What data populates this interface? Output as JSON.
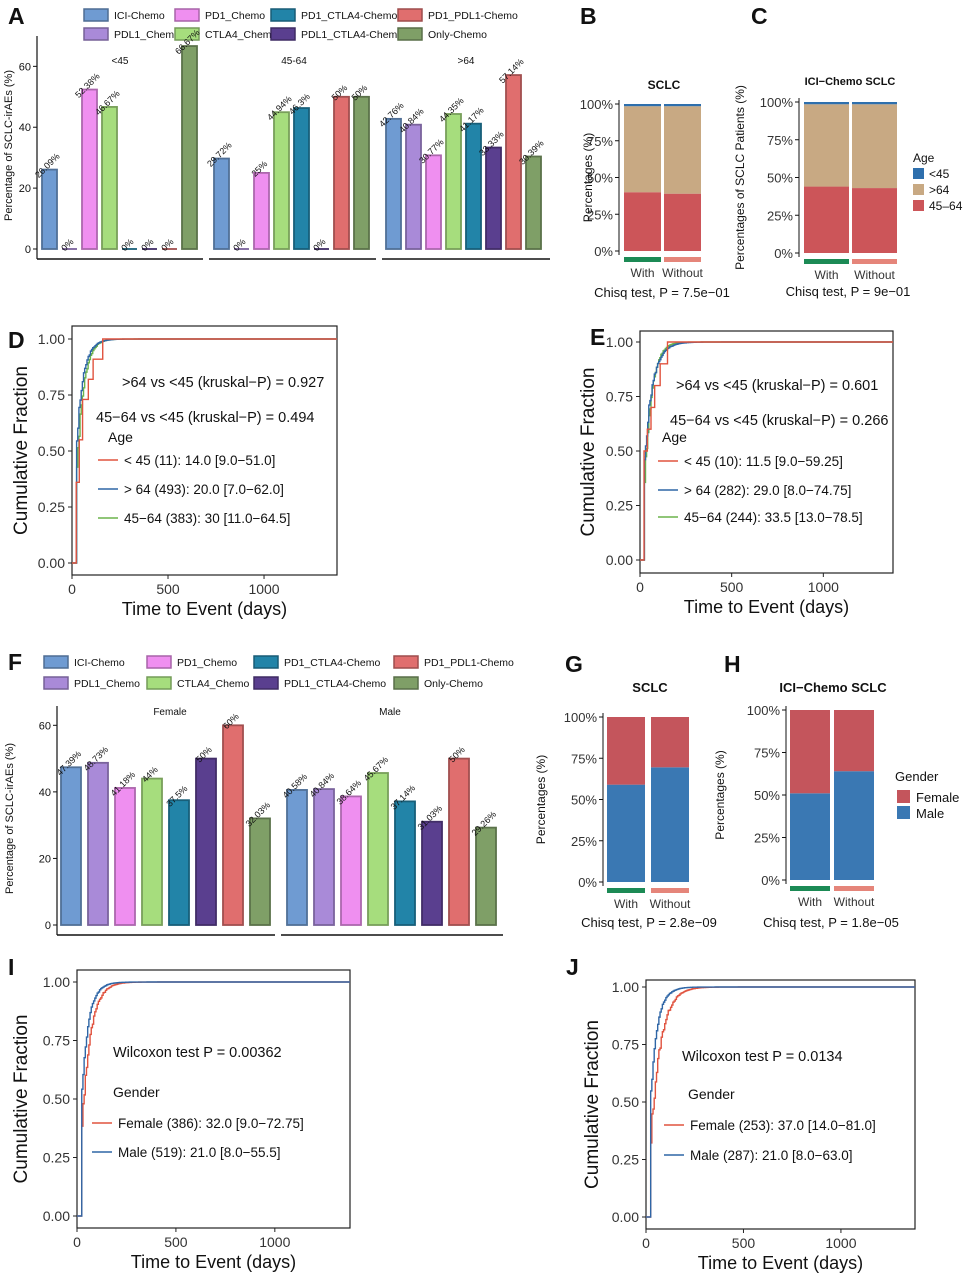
{
  "colors": {
    "ICI-Chemo": "#6f9bd2",
    "PD1_Chemo": "#ef8ff0",
    "PD1_CTLA4-Chemo": "#2284a8",
    "PD1_PDL1-Chemo": "#e06e6e",
    "PDL1_Chemo": "#a98ad8",
    "CTLA4_Chemo": "#a6dd7d",
    "PDL1_CTLA4-Chemo": "#5a3f8f",
    "Only-Chemo": "#7f9f67",
    "age_lt45": "#2e6fad",
    "age_gt64": "#c8a983",
    "age_45_64": "#cc5559",
    "female": "#c4555c",
    "male": "#3a78b3",
    "with_bar": "#1c8a55",
    "without_bar": "#e5857a",
    "km_red": "#e0533f",
    "km_blue": "#2f66a6",
    "km_green": "#6cb34b"
  },
  "chart_data": [
    {
      "panel": "A",
      "type": "bar",
      "ylabel": "Percentage of SCLC-irAEs (%)",
      "ylim": [
        0,
        68
      ],
      "yticks": [
        "0",
        "20",
        "40",
        "60"
      ],
      "legend": [
        "ICI-Chemo",
        "PD1_Chemo",
        "PD1_CTLA4-Chemo",
        "PD1_PDL1-Chemo",
        "PDL1_Chemo",
        "CTLA4_Chemo",
        "PDL1_CTLA4-Chemo",
        "Only-Chemo"
      ],
      "groups": [
        {
          "name": "<45",
          "bars": [
            {
              "s": "ICI-Chemo",
              "v": 26.09,
              "label": "26.09%"
            },
            {
              "s": "PDL1_Chemo",
              "v": 0,
              "label": "0%"
            },
            {
              "s": "PD1_Chemo",
              "v": 52.38,
              "label": "52.38%"
            },
            {
              "s": "CTLA4_Chemo",
              "v": 46.67,
              "label": "46.67%"
            },
            {
              "s": "PD1_CTLA4-Chemo",
              "v": 0,
              "label": "0%"
            },
            {
              "s": "PDL1_CTLA4-Chemo",
              "v": 0,
              "label": "0%"
            },
            {
              "s": "PD1_PDL1-Chemo",
              "v": 0,
              "label": "0%"
            },
            {
              "s": "Only-Chemo",
              "v": 66.67,
              "label": "66.67%"
            }
          ]
        },
        {
          "name": "45-64",
          "bars": [
            {
              "s": "ICI-Chemo",
              "v": 29.72,
              "label": "29.72%"
            },
            {
              "s": "PDL1_Chemo",
              "v": 0,
              "label": "0%"
            },
            {
              "s": "PD1_Chemo",
              "v": 25,
              "label": "25%"
            },
            {
              "s": "CTLA4_Chemo",
              "v": 44.94,
              "label": "44.94%"
            },
            {
              "s": "PD1_CTLA4-Chemo",
              "v": 46.3,
              "label": "46.3%"
            },
            {
              "s": "PDL1_CTLA4-Chemo",
              "v": 0,
              "label": "0%"
            },
            {
              "s": "PD1_PDL1-Chemo",
              "v": 50,
              "label": "50%"
            },
            {
              "s": "Only-Chemo",
              "v": 50,
              "label": "50%"
            }
          ]
        },
        {
          "name": ">64",
          "bars": [
            {
              "s": "ICI-Chemo",
              "v": 42.76,
              "label": "42.76%"
            },
            {
              "s": "PDL1_Chemo",
              "v": 40.84,
              "label": "40.84%"
            },
            {
              "s": "PD1_Chemo",
              "v": 30.77,
              "label": "30.77%"
            },
            {
              "s": "CTLA4_Chemo",
              "v": 44.35,
              "label": "44.35%"
            },
            {
              "s": "PD1_CTLA4-Chemo",
              "v": 41.17,
              "label": "41.17%"
            },
            {
              "s": "PDL1_CTLA4-Chemo",
              "v": 33.33,
              "label": "33.33%"
            },
            {
              "s": "PD1_PDL1-Chemo",
              "v": 57.14,
              "label": "57.14%"
            },
            {
              "s": "Only-Chemo",
              "v": 30.39,
              "label": "30.39%"
            }
          ]
        }
      ]
    },
    {
      "panel": "B",
      "type": "bar",
      "stacked": true,
      "title": "SCLC",
      "ylabel": "Percentages (%)",
      "yticks": [
        "0%",
        "25%",
        "50%",
        "75%",
        "100%"
      ],
      "categories": [
        "With",
        "Without"
      ],
      "legend_title": "Age",
      "legend": [
        "<45",
        ">64",
        "45–64"
      ],
      "series": [
        {
          "name": "45–64",
          "values": [
            40,
            39
          ]
        },
        {
          "name": ">64",
          "values": [
            58.5,
            59.5
          ]
        },
        {
          "name": "<45",
          "values": [
            1.5,
            1.5
          ]
        }
      ],
      "test": "Chisq test, P = 7.5e−01"
    },
    {
      "panel": "C",
      "type": "bar",
      "stacked": true,
      "title": "ICI−Chemo SCLC",
      "ylabel": "Percentages of SCLC Patients (%)",
      "yticks": [
        "0%",
        "25%",
        "50%",
        "75%",
        "100%"
      ],
      "categories": [
        "With",
        "Without"
      ],
      "series": [
        {
          "name": "45–64",
          "values": [
            44,
            43
          ]
        },
        {
          "name": ">64",
          "values": [
            54.5,
            55.5
          ]
        },
        {
          "name": "<45",
          "values": [
            1.5,
            1.5
          ]
        }
      ],
      "test": "Chisq test, P = 9e−01"
    },
    {
      "panel": "D",
      "type": "line",
      "xlabel": "Time to Event (days)",
      "ylabel": "Cumulative Fraction",
      "xticks": [
        "0",
        "500",
        "1000"
      ],
      "yticks": [
        "0.00",
        "0.25",
        "0.50",
        "0.75",
        "1.00"
      ],
      "annotations": [
        ">64 vs <45 (kruskal−P) = 0.927",
        "45−64 vs <45 (kruskal−P) = 0.494"
      ],
      "legend_title": "Age",
      "legend": [
        "< 45 (11): 14.0 [9.0−51.0]",
        "> 64 (493): 20.0 [7.0−62.0]",
        "45−64 (383): 30 [11.0−64.5]"
      ]
    },
    {
      "panel": "E",
      "type": "line",
      "xlabel": "Time to Event (days)",
      "ylabel": "Cumulative Fraction",
      "xticks": [
        "0",
        "500",
        "1000"
      ],
      "yticks": [
        "0.00",
        "0.25",
        "0.50",
        "0.75",
        "1.00"
      ],
      "annotations": [
        ">64 vs <45 (kruskal−P) = 0.601",
        "45−64 vs <45 (kruskal−P) = 0.266"
      ],
      "legend_title": "Age",
      "legend": [
        "< 45 (10): 11.5 [9.0−59.25]",
        "> 64 (282): 29.0 [8.0−74.75]",
        "45−64 (244): 33.5 [13.0−78.5]"
      ]
    },
    {
      "panel": "F",
      "type": "bar",
      "ylabel": "Percentage of SCLC-irAEs (%)",
      "ylim": [
        0,
        64
      ],
      "yticks": [
        "0",
        "20",
        "40",
        "60"
      ],
      "groups": [
        {
          "name": "Female",
          "bars": [
            {
              "s": "ICI-Chemo",
              "v": 47.39,
              "label": "47.39%"
            },
            {
              "s": "PDL1_Chemo",
              "v": 48.73,
              "label": "48.73%"
            },
            {
              "s": "PD1_Chemo",
              "v": 41.18,
              "label": "41.18%"
            },
            {
              "s": "CTLA4_Chemo",
              "v": 44,
              "label": "44%"
            },
            {
              "s": "PD1_CTLA4-Chemo",
              "v": 37.5,
              "label": "37.5%"
            },
            {
              "s": "PDL1_CTLA4-Chemo",
              "v": 50,
              "label": "50%"
            },
            {
              "s": "PD1_PDL1-Chemo",
              "v": 60,
              "label": "60%"
            },
            {
              "s": "Only-Chemo",
              "v": 32.03,
              "label": "32.03%"
            }
          ]
        },
        {
          "name": "Male",
          "bars": [
            {
              "s": "ICI-Chemo",
              "v": 40.58,
              "label": "40.58%"
            },
            {
              "s": "PDL1_Chemo",
              "v": 40.84,
              "label": "40.84%"
            },
            {
              "s": "PD1_Chemo",
              "v": 38.64,
              "label": "38.64%"
            },
            {
              "s": "CTLA4_Chemo",
              "v": 45.67,
              "label": "45.67%"
            },
            {
              "s": "PD1_CTLA4-Chemo",
              "v": 37.14,
              "label": "37.14%"
            },
            {
              "s": "PDL1_CTLA4-Chemo",
              "v": 31.03,
              "label": "31.03%"
            },
            {
              "s": "PD1_PDL1-Chemo",
              "v": 50,
              "label": "50%"
            },
            {
              "s": "Only-Chemo",
              "v": 29.26,
              "label": "29.26%"
            }
          ]
        }
      ]
    },
    {
      "panel": "G",
      "type": "bar",
      "stacked": true,
      "title": "SCLC",
      "ylabel": "Percentages (%)",
      "yticks": [
        "0%",
        "25%",
        "50%",
        "75%",
        "100%"
      ],
      "categories": [
        "With",
        "Without"
      ],
      "legend_title": "Gender",
      "legend": [
        "Female",
        "Male"
      ],
      "series": [
        {
          "name": "Male",
          "values": [
            59,
            69.5
          ]
        },
        {
          "name": "Female",
          "values": [
            41,
            30.5
          ]
        }
      ],
      "test": "Chisq test, P = 2.8e−09"
    },
    {
      "panel": "H",
      "type": "bar",
      "stacked": true,
      "title": "ICI−Chemo SCLC",
      "ylabel": "Percentages (%)",
      "yticks": [
        "0%",
        "25%",
        "50%",
        "75%",
        "100%"
      ],
      "categories": [
        "With",
        "Without"
      ],
      "series": [
        {
          "name": "Male",
          "values": [
            51,
            64
          ]
        },
        {
          "name": "Female",
          "values": [
            49,
            36
          ]
        }
      ],
      "test": "Chisq test, P = 1.8e−05"
    },
    {
      "panel": "I",
      "type": "line",
      "xlabel": "Time to Event (days)",
      "ylabel": "Cumulative Fraction",
      "xticks": [
        "0",
        "500",
        "1000"
      ],
      "yticks": [
        "0.00",
        "0.25",
        "0.50",
        "0.75",
        "1.00"
      ],
      "annotations": [
        "Wilcoxon test P = 0.00362"
      ],
      "legend_title": "Gender",
      "legend": [
        "Female (386): 32.0 [9.0−72.75]",
        "Male (519): 21.0 [8.0−55.5]"
      ]
    },
    {
      "panel": "J",
      "type": "line",
      "xlabel": "Time to Event (days)",
      "ylabel": "Cumulative Fraction",
      "xticks": [
        "0",
        "500",
        "1000"
      ],
      "yticks": [
        "0.00",
        "0.25",
        "0.50",
        "0.75",
        "1.00"
      ],
      "annotations": [
        "Wilcoxon test P = 0.0134"
      ],
      "legend_title": "Gender",
      "legend": [
        "Female (253): 37.0 [14.0−81.0]",
        "Male (287): 21.0 [8.0−63.0]"
      ]
    }
  ]
}
